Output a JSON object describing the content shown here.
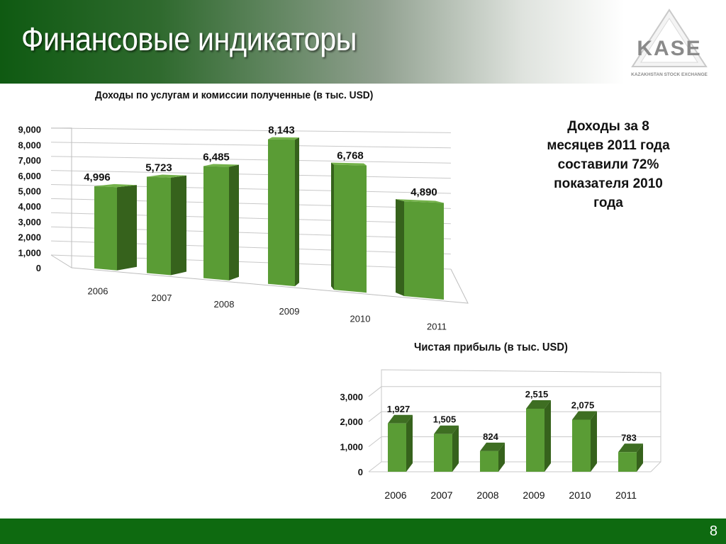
{
  "slide": {
    "title": "Финансовые индикаторы",
    "page_number": "8",
    "note": "Доходы за 8 месяцев 2011 года составили 72% показателя 2010 года",
    "logo_text": "KASE",
    "logo_subtext": "KAZAKHSTAN STOCK EXCHANGE"
  },
  "colors": {
    "header_start": "#0f5a12",
    "footer": "#0e6a10",
    "bar_front": "#5a9c35",
    "bar_side": "#36621c",
    "bar_top": "#74b24a"
  },
  "chart_data": [
    {
      "type": "bar",
      "title": "Доходы по услугам и комиссии полученные (в тыс. USD)",
      "categories": [
        "2006",
        "2007",
        "2008",
        "2009",
        "2010",
        "2011"
      ],
      "values": [
        4996,
        5723,
        6485,
        8143,
        6768,
        4890
      ],
      "value_labels": [
        "4,996",
        "5,723",
        "6,485",
        "8,143",
        "6,768",
        "4,890"
      ],
      "y_ticks": [
        "0",
        "1,000",
        "2,000",
        "3,000",
        "4,000",
        "5,000",
        "6,000",
        "7,000",
        "8,000",
        "9,000"
      ],
      "ylim": [
        0,
        9000
      ],
      "grid": true,
      "style": "3d-column"
    },
    {
      "type": "bar",
      "title": "Чистая прибыль (в тыс. USD)",
      "categories": [
        "2006",
        "2007",
        "2008",
        "2009",
        "2010",
        "2011"
      ],
      "values": [
        1927,
        1505,
        824,
        2515,
        2075,
        783
      ],
      "value_labels": [
        "1,927",
        "1,505",
        "824",
        "2,515",
        "2,075",
        "783"
      ],
      "y_ticks": [
        "0",
        "1,000",
        "2,000",
        "3,000"
      ],
      "ylim": [
        0,
        3000
      ],
      "grid": true,
      "style": "3d-column"
    }
  ]
}
